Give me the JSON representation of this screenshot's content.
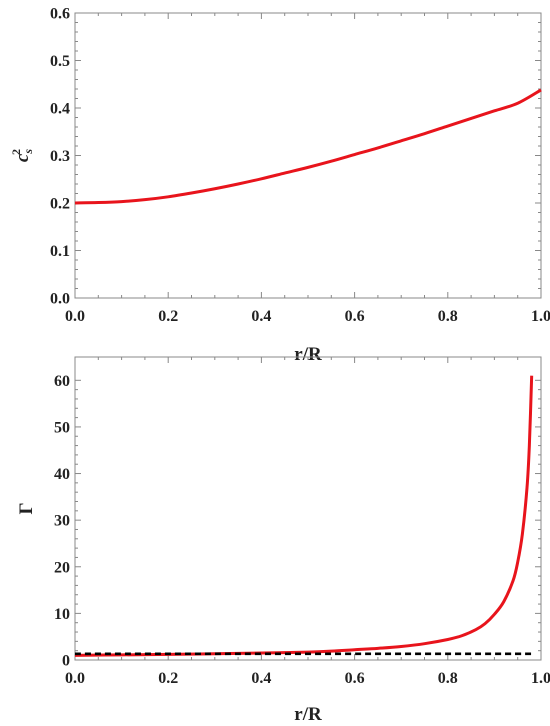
{
  "chart_data": [
    {
      "type": "line",
      "xlabel": "r/R",
      "ylabel": {
        "base": "c",
        "sup": "2",
        "sub": "s"
      },
      "xlim": [
        0,
        1
      ],
      "ylim": [
        0,
        0.6
      ],
      "xticks": [
        0,
        0.2,
        0.4,
        0.6,
        0.8,
        1.0
      ],
      "xtick_labels": [
        "0.0",
        "0.2",
        "0.4",
        "0.6",
        "0.8",
        "1.0"
      ],
      "yticks": [
        0,
        0.1,
        0.2,
        0.3,
        0.4,
        0.5,
        0.6
      ],
      "ytick_labels": [
        "0.0",
        "0.1",
        "0.2",
        "0.3",
        "0.4",
        "0.5",
        "0.6"
      ],
      "grid": false,
      "series": [
        {
          "color": "#e8141c",
          "style": "solid",
          "x": [
            0,
            0.05,
            0.1,
            0.15,
            0.2,
            0.25,
            0.3,
            0.35,
            0.4,
            0.45,
            0.5,
            0.55,
            0.6,
            0.65,
            0.7,
            0.75,
            0.8,
            0.85,
            0.9,
            0.95,
            1.0
          ],
          "y": [
            0.2,
            0.201,
            0.203,
            0.207,
            0.213,
            0.221,
            0.23,
            0.24,
            0.251,
            0.263,
            0.275,
            0.288,
            0.302,
            0.316,
            0.331,
            0.346,
            0.362,
            0.378,
            0.394,
            0.41,
            0.438
          ]
        }
      ]
    },
    {
      "type": "line",
      "xlabel": "r/R",
      "ylabel": "Γ",
      "xlim": [
        0,
        1
      ],
      "ylim": [
        0,
        65
      ],
      "xticks": [
        0,
        0.2,
        0.4,
        0.6,
        0.8,
        1.0
      ],
      "xtick_labels": [
        "0.0",
        "0.2",
        "0.4",
        "0.6",
        "0.8",
        "1.0"
      ],
      "yticks": [
        0,
        10,
        20,
        30,
        40,
        50,
        60
      ],
      "ytick_labels": [
        "0",
        "10",
        "20",
        "30",
        "40",
        "50",
        "60"
      ],
      "grid": false,
      "series": [
        {
          "color": "#e8141c",
          "style": "solid",
          "x": [
            0,
            0.1,
            0.2,
            0.3,
            0.4,
            0.5,
            0.55,
            0.6,
            0.65,
            0.7,
            0.75,
            0.8,
            0.83,
            0.86,
            0.88,
            0.9,
            0.92,
            0.94,
            0.95,
            0.96,
            0.97,
            0.975,
            0.98
          ],
          "y": [
            1.0,
            1.1,
            1.2,
            1.35,
            1.5,
            1.7,
            1.9,
            2.2,
            2.5,
            2.9,
            3.5,
            4.4,
            5.2,
            6.5,
            7.8,
            9.8,
            12.5,
            17.0,
            21.0,
            27.0,
            37.0,
            46.0,
            61.0
          ]
        },
        {
          "color": "#000000",
          "style": "dashed",
          "x": [
            0,
            0.98
          ],
          "y": [
            1.333,
            1.333
          ]
        }
      ]
    }
  ]
}
